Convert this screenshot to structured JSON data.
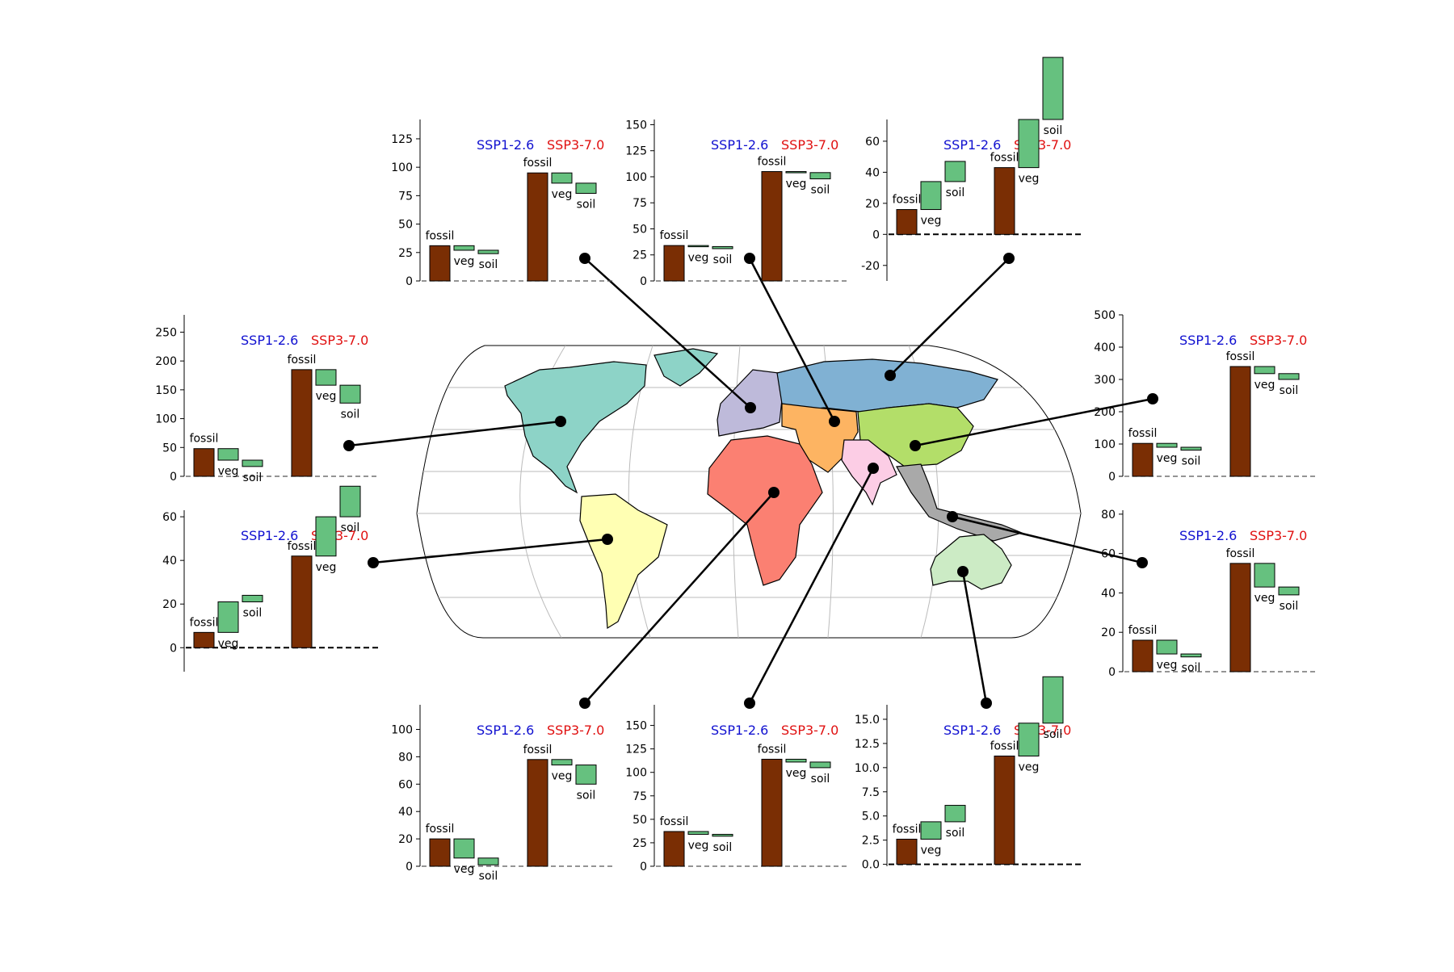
{
  "scenario_labels": {
    "low": "SSP1-2.6",
    "high": "SSP3-7.0"
  },
  "bar_labels": {
    "fossil": "fossil",
    "veg": "veg",
    "soil": "soil"
  },
  "colors": {
    "fossil": "#7a2e04",
    "landsink": "#66c17f",
    "low": "#1010d0",
    "high": "#e01010",
    "map_north_america": "#8dd3c7",
    "map_south_america": "#ffffb3",
    "map_europe": "#bebada",
    "map_africa": "#fb8072",
    "map_russia": "#80b1d3",
    "map_middle_east": "#fdb462",
    "map_china": "#b3de69",
    "map_south_asia": "#fccde5",
    "map_southeast_asia": "#a9a9a9",
    "map_oceania": "#ccebc5"
  },
  "chart_data": [
    {
      "region": "north-america",
      "type": "bar",
      "ylim": [
        0,
        280
      ],
      "ticks": [
        0,
        50,
        100,
        150,
        200,
        250
      ],
      "zero_line": "dashed-thin",
      "ssp126": {
        "fossil": 48,
        "veg": 20,
        "soil": 11
      },
      "ssp370": {
        "fossil": 185,
        "veg": 27,
        "soil": 31
      }
    },
    {
      "region": "south-america",
      "type": "bar",
      "ylim": [
        -11,
        63
      ],
      "ticks": [
        0,
        20,
        40,
        60
      ],
      "zero_line": "dashed-bold",
      "ssp126": {
        "fossil": 7,
        "veg": -14,
        "soil": -3
      },
      "ssp370": {
        "fossil": 42,
        "veg": -18,
        "soil": -14
      }
    },
    {
      "region": "europe",
      "type": "bar",
      "ylim": [
        0,
        142
      ],
      "ticks": [
        0,
        25,
        50,
        75,
        100,
        125
      ],
      "zero_line": "dashed-thin",
      "ssp126": {
        "fossil": 31,
        "veg": 4,
        "soil": 3
      },
      "ssp370": {
        "fossil": 95,
        "veg": 9,
        "soil": 9
      }
    },
    {
      "region": "middle-east",
      "type": "bar",
      "ylim": [
        0,
        155
      ],
      "ticks": [
        0,
        25,
        50,
        75,
        100,
        125,
        150
      ],
      "zero_line": "dashed-thin",
      "ssp126": {
        "fossil": 34,
        "veg": 1,
        "soil": 2
      },
      "ssp370": {
        "fossil": 105,
        "veg": 1,
        "soil": 6
      }
    },
    {
      "region": "russia",
      "type": "bar",
      "ylim": [
        -30,
        74
      ],
      "ticks": [
        -20,
        0,
        20,
        40,
        60
      ],
      "zero_line": "dashed-bold",
      "ssp126": {
        "fossil": 16,
        "veg": -18,
        "soil": -13
      },
      "ssp370": {
        "fossil": 43,
        "veg": -31,
        "soil": -40
      }
    },
    {
      "region": "china",
      "type": "bar",
      "ylim": [
        0,
        500
      ],
      "ticks": [
        0,
        100,
        200,
        300,
        400,
        500
      ],
      "zero_line": "dashed-thin",
      "ssp126": {
        "fossil": 102,
        "veg": 12,
        "soil": 9
      },
      "ssp370": {
        "fossil": 340,
        "veg": 22,
        "soil": 18
      }
    },
    {
      "region": "southeast-asia",
      "type": "bar",
      "ylim": [
        0,
        82
      ],
      "ticks": [
        0,
        20,
        40,
        60,
        80
      ],
      "zero_line": "dashed-thin",
      "ssp126": {
        "fossil": 16,
        "veg": 7,
        "soil": 1.5
      },
      "ssp370": {
        "fossil": 55,
        "veg": 12,
        "soil": 4
      }
    },
    {
      "region": "africa",
      "type": "bar",
      "ylim": [
        0,
        118
      ],
      "ticks": [
        0,
        20,
        40,
        60,
        80,
        100
      ],
      "zero_line": "dashed-thin",
      "ssp126": {
        "fossil": 20,
        "veg": 14,
        "soil": 5
      },
      "ssp370": {
        "fossil": 78,
        "veg": 4,
        "soil": 14
      }
    },
    {
      "region": "south-asia",
      "type": "bar",
      "ylim": [
        0,
        172
      ],
      "ticks": [
        0,
        25,
        50,
        75,
        100,
        125,
        150
      ],
      "zero_line": "dashed-thin",
      "ssp126": {
        "fossil": 37,
        "veg": 3,
        "soil": 2
      },
      "ssp370": {
        "fossil": 114,
        "veg": 3,
        "soil": 6
      }
    },
    {
      "region": "oceania",
      "type": "bar",
      "ylim": [
        -0.2,
        16.5
      ],
      "ticks": [
        0.0,
        2.5,
        5.0,
        7.5,
        10.0,
        12.5,
        15.0
      ],
      "tick_decimals": 1,
      "zero_line": "dashed-bold",
      "ssp126": {
        "fossil": 2.6,
        "veg": -1.8,
        "soil": -1.7
      },
      "ssp370": {
        "fossil": 11.2,
        "veg": -3.4,
        "soil": -4.8
      }
    }
  ]
}
